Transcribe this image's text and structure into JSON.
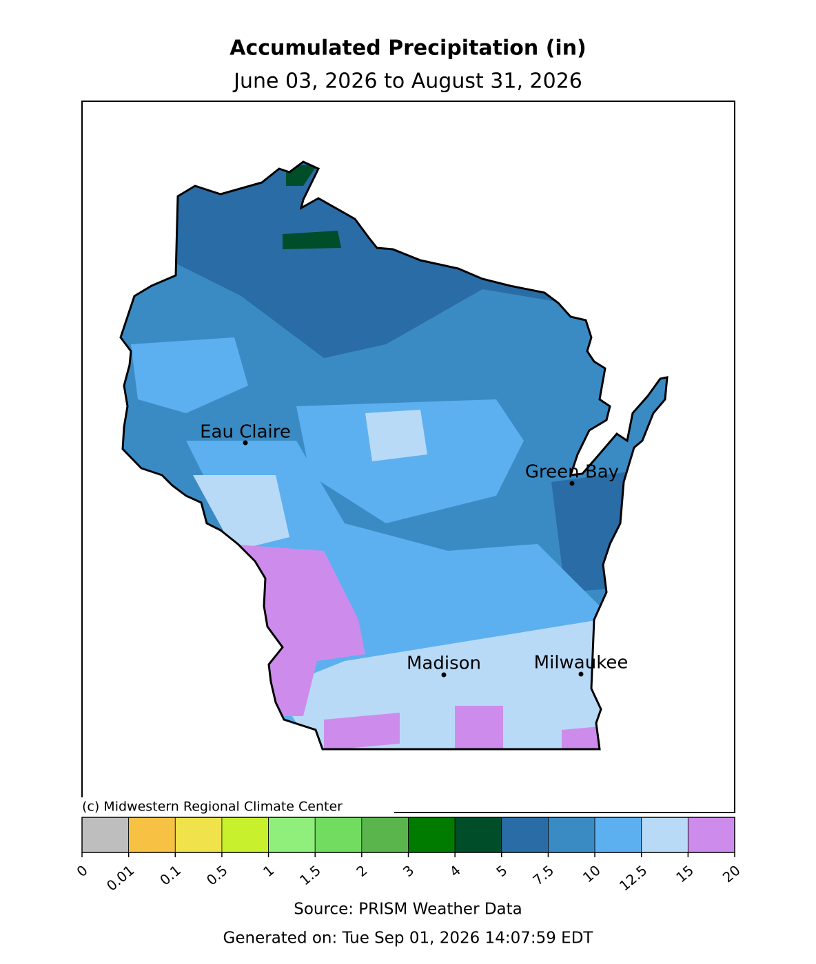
{
  "title": "Accumulated Precipitation (in)",
  "subtitle": "June 03, 2026 to August 31, 2026",
  "cities": [
    "Eau Claire",
    "Green Bay",
    "Madison",
    "Milwaukee"
  ],
  "credit": "(c) Midwestern Regional Climate Center",
  "colorbar": {
    "bins": [
      0,
      0.01,
      0.1,
      0.5,
      1,
      1.5,
      2,
      3,
      4,
      5,
      7.5,
      10,
      12.5,
      15,
      20
    ],
    "colors": [
      "#bebebe",
      "#f7c244",
      "#f0e24a",
      "#c8f02c",
      "#90ee7a",
      "#72dc60",
      "#5ab64c",
      "#007b00",
      "#004d29",
      "#2a6ca6",
      "#3a8bc4",
      "#5db0ef",
      "#b9daf7",
      "#cd8ceb"
    ]
  },
  "source": "Source: PRISM Weather Data",
  "generated": "Generated on: Tue Sep 01, 2026 14:07:59 EDT"
}
